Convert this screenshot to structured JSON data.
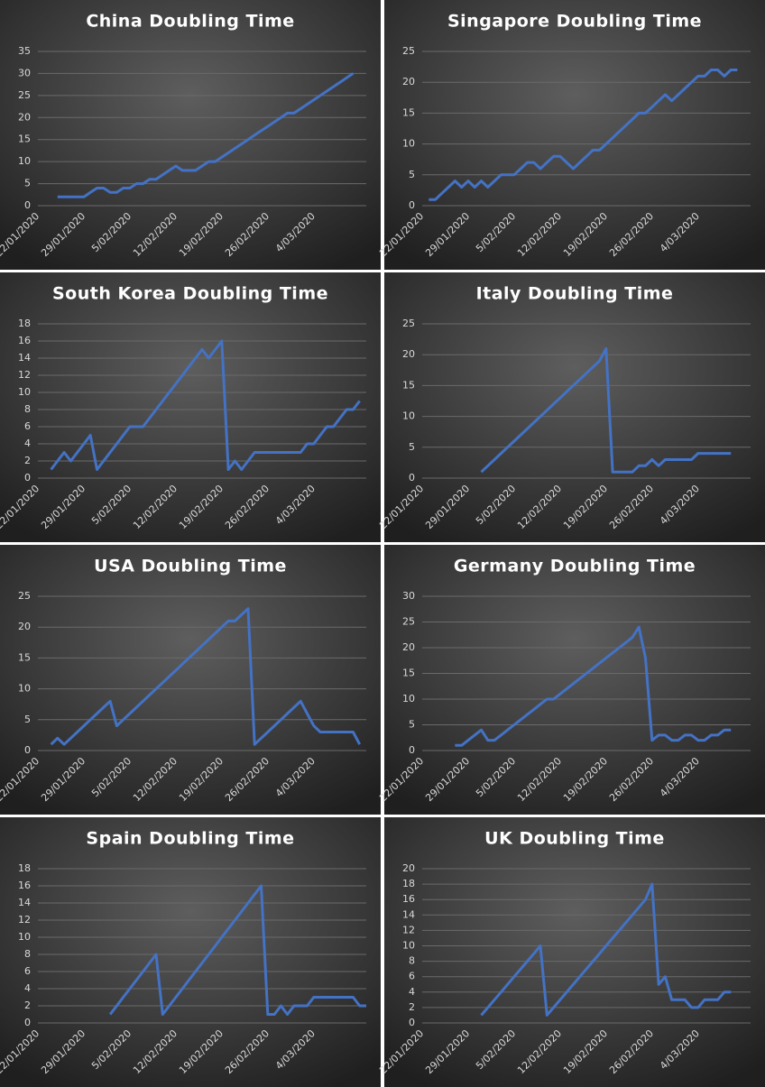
{
  "chart_data": [
    {
      "type": "line",
      "title": "China Doubling Time",
      "categories": [
        "22/01/2020",
        null,
        null,
        null,
        null,
        null,
        null,
        "29/01/2020",
        null,
        null,
        null,
        null,
        null,
        null,
        "5/02/2020",
        null,
        null,
        null,
        null,
        null,
        null,
        "12/02/2020",
        null,
        null,
        null,
        null,
        null,
        null,
        "19/02/2020",
        null,
        null,
        null,
        null,
        null,
        null,
        "26/02/2020",
        null,
        null,
        null,
        null,
        null,
        null,
        "4/03/2020",
        null,
        null,
        null,
        null,
        null,
        null,
        null,
        null
      ],
      "series": [
        {
          "color": "#4472c4",
          "values": [
            null,
            null,
            null,
            2,
            2,
            2,
            2,
            2,
            3,
            4,
            4,
            3,
            3,
            4,
            4,
            5,
            5,
            6,
            6,
            7,
            8,
            9,
            8,
            8,
            8,
            9,
            10,
            10,
            11,
            12,
            13,
            14,
            15,
            16,
            17,
            18,
            19,
            20,
            21,
            21,
            22,
            23,
            24,
            25,
            26,
            27,
            28,
            29,
            30,
            null,
            null
          ]
        }
      ],
      "ylim": [
        0,
        35
      ],
      "yticks": [
        0,
        5,
        10,
        15,
        20,
        25,
        30,
        35
      ],
      "grid": true
    },
    {
      "type": "line",
      "title": "Singapore Doubling Time",
      "categories": [
        "22/01/2020",
        null,
        null,
        null,
        null,
        null,
        null,
        "29/01/2020",
        null,
        null,
        null,
        null,
        null,
        null,
        "5/02/2020",
        null,
        null,
        null,
        null,
        null,
        null,
        "12/02/2020",
        null,
        null,
        null,
        null,
        null,
        null,
        "19/02/2020",
        null,
        null,
        null,
        null,
        null,
        null,
        "26/02/2020",
        null,
        null,
        null,
        null,
        null,
        null,
        "4/03/2020",
        null,
        null,
        null,
        null,
        null,
        null,
        null,
        null
      ],
      "series": [
        {
          "color": "#4472c4",
          "values": [
            null,
            1,
            1,
            2,
            3,
            4,
            3,
            4,
            3,
            4,
            3,
            4,
            5,
            5,
            5,
            6,
            7,
            7,
            6,
            7,
            8,
            8,
            7,
            6,
            7,
            8,
            9,
            9,
            10,
            11,
            12,
            13,
            14,
            15,
            15,
            16,
            17,
            18,
            17,
            18,
            19,
            20,
            21,
            21,
            22,
            22,
            21,
            22,
            22,
            null,
            null
          ]
        }
      ],
      "ylim": [
        0,
        25
      ],
      "yticks": [
        0,
        5,
        10,
        15,
        20,
        25
      ],
      "grid": true
    },
    {
      "type": "line",
      "title": "South Korea Doubling Time",
      "categories": [
        "22/01/2020",
        null,
        null,
        null,
        null,
        null,
        null,
        "29/01/2020",
        null,
        null,
        null,
        null,
        null,
        null,
        "5/02/2020",
        null,
        null,
        null,
        null,
        null,
        null,
        "12/02/2020",
        null,
        null,
        null,
        null,
        null,
        null,
        "19/02/2020",
        null,
        null,
        null,
        null,
        null,
        null,
        "26/02/2020",
        null,
        null,
        null,
        null,
        null,
        null,
        "4/03/2020",
        null,
        null,
        null,
        null,
        null,
        null,
        null,
        null
      ],
      "series": [
        {
          "color": "#4472c4",
          "values": [
            null,
            null,
            1,
            2,
            3,
            2,
            3,
            4,
            5,
            1,
            2,
            3,
            4,
            5,
            6,
            6,
            6,
            7,
            8,
            9,
            10,
            11,
            12,
            13,
            14,
            15,
            14,
            15,
            16,
            1,
            2,
            1,
            2,
            3,
            3,
            3,
            3,
            3,
            3,
            3,
            3,
            4,
            4,
            5,
            6,
            6,
            7,
            8,
            8,
            9,
            null
          ]
        }
      ],
      "ylim": [
        0,
        18
      ],
      "yticks": [
        0,
        2,
        4,
        6,
        8,
        10,
        12,
        14,
        16,
        18
      ],
      "grid": true
    },
    {
      "type": "line",
      "title": "Italy Doubling Time",
      "categories": [
        "22/01/2020",
        null,
        null,
        null,
        null,
        null,
        null,
        "29/01/2020",
        null,
        null,
        null,
        null,
        null,
        null,
        "5/02/2020",
        null,
        null,
        null,
        null,
        null,
        null,
        "12/02/2020",
        null,
        null,
        null,
        null,
        null,
        null,
        "19/02/2020",
        null,
        null,
        null,
        null,
        null,
        null,
        "26/02/2020",
        null,
        null,
        null,
        null,
        null,
        null,
        "4/03/2020",
        null,
        null,
        null,
        null,
        null,
        null,
        null,
        null
      ],
      "series": [
        {
          "color": "#4472c4",
          "values": [
            null,
            null,
            null,
            null,
            null,
            null,
            null,
            null,
            null,
            1,
            2,
            3,
            4,
            5,
            6,
            7,
            8,
            9,
            10,
            11,
            12,
            13,
            14,
            15,
            16,
            17,
            18,
            19,
            21,
            1,
            1,
            1,
            1,
            2,
            2,
            3,
            2,
            3,
            3,
            3,
            3,
            3,
            4,
            4,
            4,
            4,
            4,
            4,
            null,
            null,
            null
          ]
        }
      ],
      "ylim": [
        0,
        25
      ],
      "yticks": [
        0,
        5,
        10,
        15,
        20,
        25
      ],
      "grid": true
    },
    {
      "type": "line",
      "title": "USA Doubling Time",
      "categories": [
        "22/01/2020",
        null,
        null,
        null,
        null,
        null,
        null,
        "29/01/2020",
        null,
        null,
        null,
        null,
        null,
        null,
        "5/02/2020",
        null,
        null,
        null,
        null,
        null,
        null,
        "12/02/2020",
        null,
        null,
        null,
        null,
        null,
        null,
        "19/02/2020",
        null,
        null,
        null,
        null,
        null,
        null,
        "26/02/2020",
        null,
        null,
        null,
        null,
        null,
        null,
        "4/03/2020",
        null,
        null,
        null,
        null,
        null,
        null,
        null,
        null
      ],
      "series": [
        {
          "color": "#4472c4",
          "values": [
            null,
            null,
            1,
            2,
            1,
            2,
            3,
            4,
            5,
            6,
            7,
            8,
            4,
            5,
            6,
            7,
            8,
            9,
            10,
            11,
            12,
            13,
            14,
            15,
            16,
            17,
            18,
            19,
            20,
            21,
            21,
            22,
            23,
            1,
            2,
            3,
            4,
            5,
            6,
            7,
            8,
            6,
            4,
            3,
            3,
            3,
            3,
            3,
            3,
            1,
            null
          ]
        }
      ],
      "ylim": [
        0,
        25
      ],
      "yticks": [
        0,
        5,
        10,
        15,
        20,
        25
      ],
      "grid": true
    },
    {
      "type": "line",
      "title": "Germany Doubling Time",
      "categories": [
        "22/01/2020",
        null,
        null,
        null,
        null,
        null,
        null,
        "29/01/2020",
        null,
        null,
        null,
        null,
        null,
        null,
        "5/02/2020",
        null,
        null,
        null,
        null,
        null,
        null,
        "12/02/2020",
        null,
        null,
        null,
        null,
        null,
        null,
        "19/02/2020",
        null,
        null,
        null,
        null,
        null,
        null,
        "26/02/2020",
        null,
        null,
        null,
        null,
        null,
        null,
        "4/03/2020",
        null,
        null,
        null,
        null,
        null,
        null,
        null,
        null
      ],
      "series": [
        {
          "color": "#4472c4",
          "values": [
            null,
            null,
            null,
            null,
            null,
            1,
            1,
            2,
            3,
            4,
            2,
            2,
            3,
            4,
            5,
            6,
            7,
            8,
            9,
            10,
            10,
            11,
            12,
            13,
            14,
            15,
            16,
            17,
            18,
            19,
            20,
            21,
            22,
            24,
            18,
            2,
            3,
            3,
            2,
            2,
            3,
            3,
            2,
            2,
            3,
            3,
            4,
            4,
            null,
            null,
            null
          ]
        }
      ],
      "ylim": [
        0,
        30
      ],
      "yticks": [
        0,
        5,
        10,
        15,
        20,
        25,
        30
      ],
      "grid": true
    },
    {
      "type": "line",
      "title": "Spain Doubling Time",
      "categories": [
        "22/01/2020",
        null,
        null,
        null,
        null,
        null,
        null,
        "29/01/2020",
        null,
        null,
        null,
        null,
        null,
        null,
        "5/02/2020",
        null,
        null,
        null,
        null,
        null,
        null,
        "12/02/2020",
        null,
        null,
        null,
        null,
        null,
        null,
        "19/02/2020",
        null,
        null,
        null,
        null,
        null,
        null,
        "26/02/2020",
        null,
        null,
        null,
        null,
        null,
        null,
        "4/03/2020",
        null,
        null,
        null,
        null,
        null,
        null,
        null,
        null
      ],
      "series": [
        {
          "color": "#4472c4",
          "values": [
            null,
            null,
            null,
            null,
            null,
            null,
            null,
            null,
            null,
            null,
            null,
            1,
            2,
            3,
            4,
            5,
            6,
            7,
            8,
            1,
            2,
            3,
            4,
            5,
            6,
            7,
            8,
            9,
            10,
            11,
            12,
            13,
            14,
            15,
            16,
            1,
            1,
            2,
            1,
            2,
            2,
            2,
            3,
            3,
            3,
            3,
            3,
            3,
            3,
            2,
            2
          ]
        }
      ],
      "ylim": [
        0,
        18
      ],
      "yticks": [
        0,
        2,
        4,
        6,
        8,
        10,
        12,
        14,
        16,
        18
      ],
      "grid": true
    },
    {
      "type": "line",
      "title": "UK Doubling Time",
      "categories": [
        "22/01/2020",
        null,
        null,
        null,
        null,
        null,
        null,
        "29/01/2020",
        null,
        null,
        null,
        null,
        null,
        null,
        "5/02/2020",
        null,
        null,
        null,
        null,
        null,
        null,
        "12/02/2020",
        null,
        null,
        null,
        null,
        null,
        null,
        "19/02/2020",
        null,
        null,
        null,
        null,
        null,
        null,
        "26/02/2020",
        null,
        null,
        null,
        null,
        null,
        null,
        "4/03/2020",
        null,
        null,
        null,
        null,
        null,
        null,
        null,
        null
      ],
      "series": [
        {
          "color": "#4472c4",
          "values": [
            null,
            null,
            null,
            null,
            null,
            null,
            null,
            null,
            null,
            1,
            2,
            3,
            4,
            5,
            6,
            7,
            8,
            9,
            10,
            1,
            2,
            3,
            4,
            5,
            6,
            7,
            8,
            9,
            10,
            11,
            12,
            13,
            14,
            15,
            16,
            18,
            5,
            6,
            3,
            3,
            3,
            2,
            2,
            3,
            3,
            3,
            4,
            4,
            null,
            null,
            null
          ]
        }
      ],
      "ylim": [
        0,
        20
      ],
      "yticks": [
        0,
        2,
        4,
        6,
        8,
        10,
        12,
        14,
        16,
        18,
        20
      ],
      "grid": true
    }
  ]
}
